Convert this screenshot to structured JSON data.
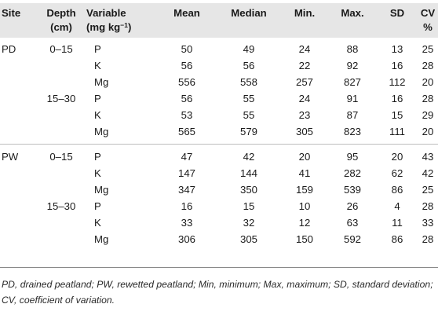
{
  "table": {
    "headers": {
      "site": "Site",
      "depth": [
        "Depth",
        "(cm)"
      ],
      "variable": [
        "Variable",
        "(mg kg",
        "−1",
        ")"
      ],
      "mean": "Mean",
      "median": "Median",
      "min": "Min.",
      "max": "Max.",
      "sd": "SD",
      "cv": [
        "CV",
        "%"
      ]
    },
    "rows": [
      {
        "site": "PD",
        "depth": "0–15",
        "variable": "P",
        "mean": "50",
        "median": "49",
        "min": "24",
        "max": "88",
        "sd": "13",
        "cv": "25"
      },
      {
        "site": "",
        "depth": "",
        "variable": "K",
        "mean": "56",
        "median": "56",
        "min": "22",
        "max": "92",
        "sd": "16",
        "cv": "28"
      },
      {
        "site": "",
        "depth": "",
        "variable": "Mg",
        "mean": "556",
        "median": "558",
        "min": "257",
        "max": "827",
        "sd": "112",
        "cv": "20"
      },
      {
        "site": "",
        "depth": "15–30",
        "variable": "P",
        "mean": "56",
        "median": "55",
        "min": "24",
        "max": "91",
        "sd": "16",
        "cv": "28"
      },
      {
        "site": "",
        "depth": "",
        "variable": "K",
        "mean": "53",
        "median": "55",
        "min": "23",
        "max": "87",
        "sd": "15",
        "cv": "29"
      },
      {
        "site": "",
        "depth": "",
        "variable": "Mg",
        "mean": "565",
        "median": "579",
        "min": "305",
        "max": "823",
        "sd": "111",
        "cv": "20"
      },
      {
        "site": "PW",
        "depth": "0–15",
        "variable": "P",
        "mean": "47",
        "median": "42",
        "min": "20",
        "max": "95",
        "sd": "20",
        "cv": "43"
      },
      {
        "site": "",
        "depth": "",
        "variable": "K",
        "mean": "147",
        "median": "144",
        "min": "41",
        "max": "282",
        "sd": "62",
        "cv": "42"
      },
      {
        "site": "",
        "depth": "",
        "variable": "Mg",
        "mean": "347",
        "median": "350",
        "min": "159",
        "max": "539",
        "sd": "86",
        "cv": "25"
      },
      {
        "site": "",
        "depth": "15–30",
        "variable": "P",
        "mean": "16",
        "median": "15",
        "min": "10",
        "max": "26",
        "sd": "4",
        "cv": "28"
      },
      {
        "site": "",
        "depth": "",
        "variable": "K",
        "mean": "33",
        "median": "32",
        "min": "12",
        "max": "63",
        "sd": "11",
        "cv": "33"
      },
      {
        "site": "",
        "depth": "",
        "variable": "Mg",
        "mean": "306",
        "median": "305",
        "min": "150",
        "max": "592",
        "sd": "86",
        "cv": "28"
      }
    ]
  },
  "footnote": "PD, drained peatland; PW, rewetted peatland; Min, minimum; Max, maximum; SD, standard deviation; CV, coefficient of variation."
}
